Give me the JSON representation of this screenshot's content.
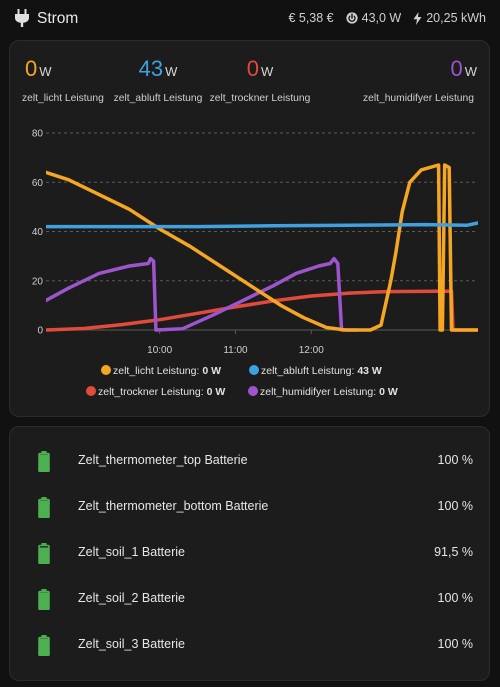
{
  "header": {
    "title": "Strom",
    "cost": "€ 5,38 €",
    "power": "43,0 W",
    "energy": "20,25 kWh",
    "icons": {
      "title": "power-plug-icon",
      "cost": "euro-icon",
      "power": "power-circle-icon",
      "energy": "lightning-bolt-icon"
    }
  },
  "values": [
    {
      "num": "0",
      "unit": "W",
      "label": "zelt_licht Leistung",
      "color": "#f5a623"
    },
    {
      "num": "43",
      "unit": "W",
      "label": "zelt_abluft Leistung",
      "color": "#40a0e0"
    },
    {
      "num": "0",
      "unit": "W",
      "label": "zelt_trockner Leistung",
      "color": "#e04b3c"
    },
    {
      "num": "0",
      "unit": "W",
      "label": "zelt_humidifyer Leistung",
      "color": "#9c55cc"
    }
  ],
  "chart_data": {
    "type": "line",
    "ylim": [
      0,
      80
    ],
    "yticks": [
      "0",
      "20",
      "40",
      "60",
      "80"
    ],
    "xticks": [
      "10:00",
      "11:00",
      "12:00"
    ],
    "grid": true,
    "legend_position": "bottom",
    "series": [
      {
        "name": "zelt_licht Leistung",
        "color": "#f5a623",
        "legend_value": "0 W",
        "points": [
          [
            8.5,
            64
          ],
          [
            8.8,
            61
          ],
          [
            9.2,
            55
          ],
          [
            9.6,
            49
          ],
          [
            10.0,
            41
          ],
          [
            10.4,
            34
          ],
          [
            10.8,
            26
          ],
          [
            11.2,
            18
          ],
          [
            11.6,
            10
          ],
          [
            11.9,
            5
          ],
          [
            12.2,
            1
          ],
          [
            12.45,
            0
          ],
          [
            12.62,
            0
          ],
          [
            12.78,
            0
          ],
          [
            12.92,
            2
          ],
          [
            13.05,
            20
          ],
          [
            13.12,
            32
          ],
          [
            13.2,
            48
          ],
          [
            13.3,
            60
          ],
          [
            13.45,
            65
          ],
          [
            13.68,
            67
          ],
          [
            13.7,
            0
          ],
          [
            13.73,
            0
          ],
          [
            13.76,
            67
          ],
          [
            13.82,
            66
          ],
          [
            13.85,
            0
          ],
          [
            14.2,
            0
          ]
        ]
      },
      {
        "name": "zelt_abluft Leistung",
        "color": "#40a0e0",
        "legend_value": "43 W",
        "points": [
          [
            8.5,
            42
          ],
          [
            9.5,
            42
          ],
          [
            10.5,
            42
          ],
          [
            11.5,
            42.3
          ],
          [
            12.5,
            42.5
          ],
          [
            13.5,
            42.8
          ],
          [
            14.05,
            42.5
          ],
          [
            14.2,
            43.5
          ]
        ]
      },
      {
        "name": "zelt_trockner Leistung",
        "color": "#e04b3c",
        "legend_value": "0 W",
        "points": [
          [
            8.5,
            0
          ],
          [
            9.0,
            0.6
          ],
          [
            9.5,
            2.2
          ],
          [
            10.0,
            4.2
          ],
          [
            10.5,
            6.8
          ],
          [
            11.0,
            9.4
          ],
          [
            11.5,
            11.8
          ],
          [
            12.0,
            13.8
          ],
          [
            12.5,
            15
          ],
          [
            13.0,
            15.6
          ],
          [
            13.85,
            15.8
          ],
          [
            13.87,
            0
          ],
          [
            14.2,
            0
          ]
        ]
      },
      {
        "name": "zelt_humidifyer Leistung",
        "color": "#9c55cc",
        "legend_value": "0 W",
        "points": [
          [
            8.5,
            12
          ],
          [
            8.8,
            17
          ],
          [
            9.2,
            23
          ],
          [
            9.6,
            26
          ],
          [
            9.85,
            27
          ],
          [
            9.88,
            29
          ],
          [
            9.92,
            28
          ],
          [
            9.95,
            0
          ],
          [
            10.3,
            0.5
          ],
          [
            10.7,
            6
          ],
          [
            11.1,
            12
          ],
          [
            11.5,
            18
          ],
          [
            11.8,
            23
          ],
          [
            12.1,
            26
          ],
          [
            12.25,
            27
          ],
          [
            12.3,
            29
          ],
          [
            12.35,
            27
          ],
          [
            12.4,
            0
          ],
          [
            12.6,
            0
          ]
        ]
      }
    ]
  },
  "batteries": [
    {
      "name": "Zelt_thermometer_top Batterie",
      "value": "100 %",
      "level": 1.0,
      "icon": "battery-full-icon"
    },
    {
      "name": "Zelt_thermometer_bottom Batterie",
      "value": "100 %",
      "level": 1.0,
      "icon": "battery-full-icon"
    },
    {
      "name": "Zelt_soil_1 Batterie",
      "value": "91,5 %",
      "level": 0.915,
      "icon": "battery-90-icon"
    },
    {
      "name": "Zelt_soil_2 Batterie",
      "value": "100 %",
      "level": 1.0,
      "icon": "battery-full-icon"
    },
    {
      "name": "Zelt_soil_3 Batterie",
      "value": "100 %",
      "level": 1.0,
      "icon": "battery-full-icon"
    }
  ],
  "colors": {
    "battery": "#4caf50",
    "grid": "#5a5a5a",
    "card": "#1c1c1c",
    "background": "#111111"
  }
}
